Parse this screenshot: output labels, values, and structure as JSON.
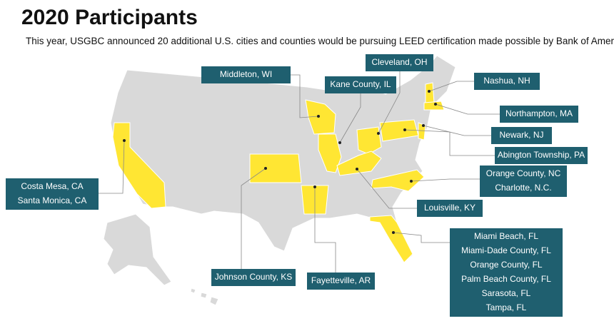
{
  "header": {
    "title": "2020 Participants",
    "subtitle": "This year, USGBC announced 20 additional U.S. cities and counties would be pursuing LEED certification made possible by Bank of America."
  },
  "callouts": [
    {
      "lines": [
        "Middleton, WI"
      ]
    },
    {
      "lines": [
        "Kane County, IL"
      ]
    },
    {
      "lines": [
        "Cleveland, OH"
      ]
    },
    {
      "lines": [
        "Nashua, NH"
      ]
    },
    {
      "lines": [
        "Northampton, MA"
      ]
    },
    {
      "lines": [
        "Newark, NJ"
      ]
    },
    {
      "lines": [
        "Abington Township, PA"
      ]
    },
    {
      "lines": [
        "Orange County, NC",
        "Charlotte, N.C."
      ]
    },
    {
      "lines": [
        "Costa Mesa, CA",
        "Santa Monica, CA"
      ]
    },
    {
      "lines": [
        "Louisville, KY"
      ]
    },
    {
      "lines": [
        "Miami Beach, FL",
        "Miami-Dade County, FL",
        "Orange County, FL",
        "Palm Beach County, FL",
        "Sarasota, FL",
        "Tampa, FL"
      ]
    },
    {
      "lines": [
        "Johnson County, KS"
      ]
    },
    {
      "lines": [
        "Fayetteville, AR"
      ]
    }
  ]
}
